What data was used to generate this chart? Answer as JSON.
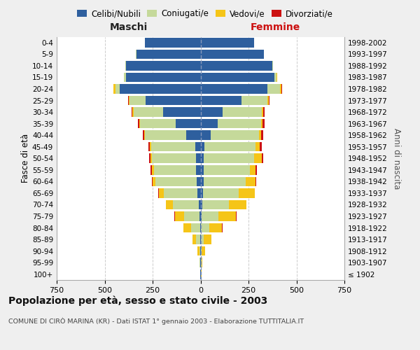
{
  "age_groups": [
    "100+",
    "95-99",
    "90-94",
    "85-89",
    "80-84",
    "75-79",
    "70-74",
    "65-69",
    "60-64",
    "55-59",
    "50-54",
    "45-49",
    "40-44",
    "35-39",
    "30-34",
    "25-29",
    "20-24",
    "15-19",
    "10-14",
    "5-9",
    "0-4"
  ],
  "birth_years": [
    "≤ 1902",
    "1903-1907",
    "1908-1912",
    "1913-1917",
    "1918-1922",
    "1923-1927",
    "1928-1932",
    "1933-1937",
    "1938-1942",
    "1943-1947",
    "1948-1952",
    "1953-1957",
    "1958-1962",
    "1963-1967",
    "1968-1972",
    "1973-1977",
    "1978-1982",
    "1983-1987",
    "1988-1992",
    "1993-1997",
    "1998-2002"
  ],
  "colors": {
    "celibi": "#2e5f9e",
    "coniugati": "#c5d99a",
    "vedovi": "#f5c518",
    "divorziati": "#cc1111"
  },
  "males": {
    "celibi": [
      2,
      2,
      2,
      2,
      3,
      5,
      10,
      15,
      20,
      22,
      22,
      28,
      75,
      130,
      195,
      285,
      420,
      390,
      390,
      335,
      290
    ],
    "coniugati": [
      0,
      2,
      5,
      22,
      48,
      82,
      135,
      178,
      215,
      222,
      230,
      230,
      215,
      185,
      155,
      85,
      25,
      8,
      2,
      1,
      0
    ],
    "vedovi": [
      1,
      2,
      8,
      18,
      38,
      48,
      35,
      25,
      15,
      8,
      8,
      5,
      5,
      5,
      5,
      5,
      8,
      2,
      0,
      0,
      0
    ],
    "divorziati": [
      0,
      0,
      0,
      0,
      2,
      3,
      2,
      2,
      5,
      8,
      8,
      8,
      5,
      5,
      5,
      3,
      2,
      0,
      0,
      0,
      0
    ]
  },
  "females": {
    "nubili": [
      2,
      2,
      2,
      3,
      3,
      5,
      8,
      12,
      15,
      18,
      18,
      20,
      52,
      88,
      115,
      215,
      350,
      385,
      375,
      330,
      280
    ],
    "coniugate": [
      0,
      2,
      5,
      15,
      42,
      88,
      138,
      188,
      222,
      238,
      262,
      268,
      252,
      228,
      205,
      135,
      65,
      12,
      2,
      1,
      0
    ],
    "vedove": [
      2,
      5,
      15,
      38,
      68,
      92,
      92,
      82,
      48,
      32,
      38,
      22,
      12,
      8,
      5,
      5,
      8,
      2,
      0,
      0,
      0
    ],
    "divorziate": [
      0,
      0,
      0,
      0,
      2,
      2,
      2,
      2,
      5,
      5,
      8,
      10,
      10,
      10,
      8,
      3,
      2,
      0,
      0,
      0,
      0
    ]
  },
  "xlim": 750,
  "title": "Popolazione per età, sesso e stato civile - 2003",
  "subtitle": "COMUNE DI CIRÒ MARINA (KR) - Dati ISTAT 1° gennaio 2003 - Elaborazione TUTTITALIA.IT",
  "ylabel_left": "Fasce di età",
  "ylabel_right": "Anni di nascita",
  "label_maschi": "Maschi",
  "label_femmine": "Femmine",
  "bg_color": "#efefef",
  "plot_bg_color": "#ffffff",
  "legend_labels": [
    "Celibi/Nubili",
    "Coniugati/e",
    "Vedovi/e",
    "Divorziati/e"
  ]
}
